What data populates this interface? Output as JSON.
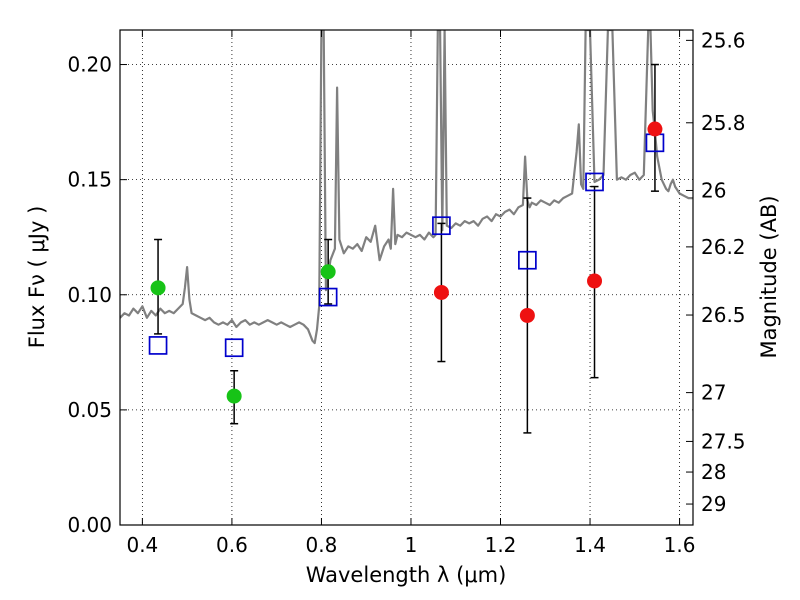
{
  "chart_data": {
    "type": "scatter",
    "xlabel": "Wavelength  λ (μm)",
    "ylabel_left": "Flux  Fν  ( μJy )",
    "ylabel_right": "Magnitude (AB)",
    "xlim": [
      0.35,
      1.63
    ],
    "ylim": [
      0.0,
      0.215
    ],
    "grid": true,
    "x_ticks": [
      0.4,
      0.6,
      0.8,
      1.0,
      1.2,
      1.4,
      1.6
    ],
    "x_tick_labels": [
      "0.4",
      "0.6",
      "0.8",
      "1",
      "1.2",
      "1.4",
      "1.6"
    ],
    "y_ticks": [
      0.0,
      0.05,
      0.1,
      0.15,
      0.2
    ],
    "y_tick_labels": [
      "0.00",
      "0.05",
      "0.10",
      "0.15",
      "0.20"
    ],
    "right_ticks": [
      {
        "flux": 0.2105,
        "label": "25.6"
      },
      {
        "flux": 0.1747,
        "label": "25.8"
      },
      {
        "flux": 0.1453,
        "label": "26"
      },
      {
        "flux": 0.1208,
        "label": "26.2"
      },
      {
        "flux": 0.0912,
        "label": "26.5"
      },
      {
        "flux": 0.0575,
        "label": "27"
      },
      {
        "flux": 0.0363,
        "label": "27.5"
      },
      {
        "flux": 0.023,
        "label": "28"
      },
      {
        "flux": 0.0091,
        "label": "29"
      }
    ],
    "series": [
      {
        "name": "model spectrum",
        "marker": "line",
        "color": "#808080",
        "x": [
          0.35,
          0.36,
          0.37,
          0.38,
          0.39,
          0.4,
          0.41,
          0.42,
          0.43,
          0.44,
          0.45,
          0.46,
          0.47,
          0.48,
          0.49,
          0.495,
          0.5,
          0.505,
          0.51,
          0.52,
          0.53,
          0.54,
          0.55,
          0.56,
          0.57,
          0.58,
          0.59,
          0.6,
          0.61,
          0.62,
          0.63,
          0.64,
          0.65,
          0.66,
          0.67,
          0.68,
          0.69,
          0.7,
          0.71,
          0.72,
          0.73,
          0.74,
          0.75,
          0.76,
          0.77,
          0.78,
          0.785,
          0.79,
          0.795,
          0.8,
          0.805,
          0.81,
          0.815,
          0.82,
          0.83,
          0.835,
          0.84,
          0.85,
          0.86,
          0.87,
          0.88,
          0.89,
          0.9,
          0.91,
          0.92,
          0.93,
          0.94,
          0.95,
          0.955,
          0.96,
          0.965,
          0.97,
          0.98,
          0.99,
          1.0,
          1.01,
          1.02,
          1.03,
          1.04,
          1.05,
          1.055,
          1.06,
          1.065,
          1.07,
          1.075,
          1.08,
          1.09,
          1.1,
          1.11,
          1.12,
          1.13,
          1.14,
          1.15,
          1.16,
          1.17,
          1.18,
          1.19,
          1.2,
          1.21,
          1.22,
          1.23,
          1.24,
          1.25,
          1.255,
          1.26,
          1.265,
          1.27,
          1.28,
          1.29,
          1.3,
          1.31,
          1.32,
          1.33,
          1.34,
          1.35,
          1.36,
          1.37,
          1.375,
          1.38,
          1.385,
          1.39,
          1.4,
          1.41,
          1.42,
          1.43,
          1.44,
          1.45,
          1.46,
          1.47,
          1.48,
          1.49,
          1.5,
          1.51,
          1.52,
          1.53,
          1.535,
          1.54,
          1.545,
          1.55,
          1.56,
          1.57,
          1.575,
          1.58,
          1.585,
          1.59,
          1.6,
          1.61,
          1.62,
          1.63
        ],
        "y": [
          0.09,
          0.092,
          0.091,
          0.094,
          0.092,
          0.095,
          0.09,
          0.093,
          0.091,
          0.094,
          0.092,
          0.093,
          0.092,
          0.094,
          0.096,
          0.103,
          0.112,
          0.098,
          0.092,
          0.091,
          0.09,
          0.089,
          0.09,
          0.088,
          0.087,
          0.088,
          0.087,
          0.089,
          0.086,
          0.088,
          0.089,
          0.087,
          0.088,
          0.087,
          0.088,
          0.089,
          0.088,
          0.087,
          0.088,
          0.087,
          0.086,
          0.087,
          0.088,
          0.087,
          0.085,
          0.08,
          0.079,
          0.085,
          0.095,
          0.215,
          0.215,
          0.102,
          0.108,
          0.115,
          0.12,
          0.19,
          0.124,
          0.118,
          0.121,
          0.12,
          0.122,
          0.119,
          0.125,
          0.123,
          0.13,
          0.115,
          0.121,
          0.124,
          0.12,
          0.146,
          0.122,
          0.126,
          0.125,
          0.127,
          0.126,
          0.125,
          0.126,
          0.124,
          0.127,
          0.125,
          0.126,
          0.215,
          0.215,
          0.128,
          0.215,
          0.13,
          0.129,
          0.131,
          0.13,
          0.132,
          0.131,
          0.132,
          0.13,
          0.133,
          0.134,
          0.132,
          0.135,
          0.134,
          0.136,
          0.137,
          0.135,
          0.138,
          0.139,
          0.16,
          0.141,
          0.138,
          0.14,
          0.139,
          0.141,
          0.14,
          0.139,
          0.141,
          0.14,
          0.142,
          0.143,
          0.144,
          0.162,
          0.174,
          0.148,
          0.146,
          0.215,
          0.215,
          0.149,
          0.15,
          0.152,
          0.215,
          0.215,
          0.15,
          0.151,
          0.15,
          0.152,
          0.153,
          0.15,
          0.152,
          0.215,
          0.215,
          0.18,
          0.171,
          0.16,
          0.15,
          0.146,
          0.145,
          0.148,
          0.15,
          0.147,
          0.144,
          0.143,
          0.142,
          0.142
        ]
      },
      {
        "name": "green circles",
        "marker": "circle",
        "color": "#17c317",
        "points": [
          {
            "x": 0.435,
            "y": 0.103,
            "lo": 0.083,
            "hi": 0.124
          },
          {
            "x": 0.605,
            "y": 0.056,
            "lo": 0.044,
            "hi": 0.067
          },
          {
            "x": 0.815,
            "y": 0.11,
            "lo": 0.096,
            "hi": 0.124
          }
        ]
      },
      {
        "name": "red circles",
        "marker": "circle",
        "color": "#ee1111",
        "points": [
          {
            "x": 1.068,
            "y": 0.101,
            "lo": 0.071,
            "hi": 0.131
          },
          {
            "x": 1.26,
            "y": 0.091,
            "lo": 0.04,
            "hi": 0.142
          },
          {
            "x": 1.41,
            "y": 0.106,
            "lo": 0.064,
            "hi": 0.147
          },
          {
            "x": 1.545,
            "y": 0.172,
            "lo": 0.145,
            "hi": 0.2
          }
        ]
      },
      {
        "name": "blue squares",
        "marker": "square",
        "color": "#0000cc",
        "points": [
          {
            "x": 0.435,
            "y": 0.078
          },
          {
            "x": 0.605,
            "y": 0.077
          },
          {
            "x": 0.815,
            "y": 0.099
          },
          {
            "x": 1.068,
            "y": 0.13
          },
          {
            "x": 1.26,
            "y": 0.115
          },
          {
            "x": 1.41,
            "y": 0.149
          },
          {
            "x": 1.545,
            "y": 0.166
          }
        ]
      }
    ]
  }
}
